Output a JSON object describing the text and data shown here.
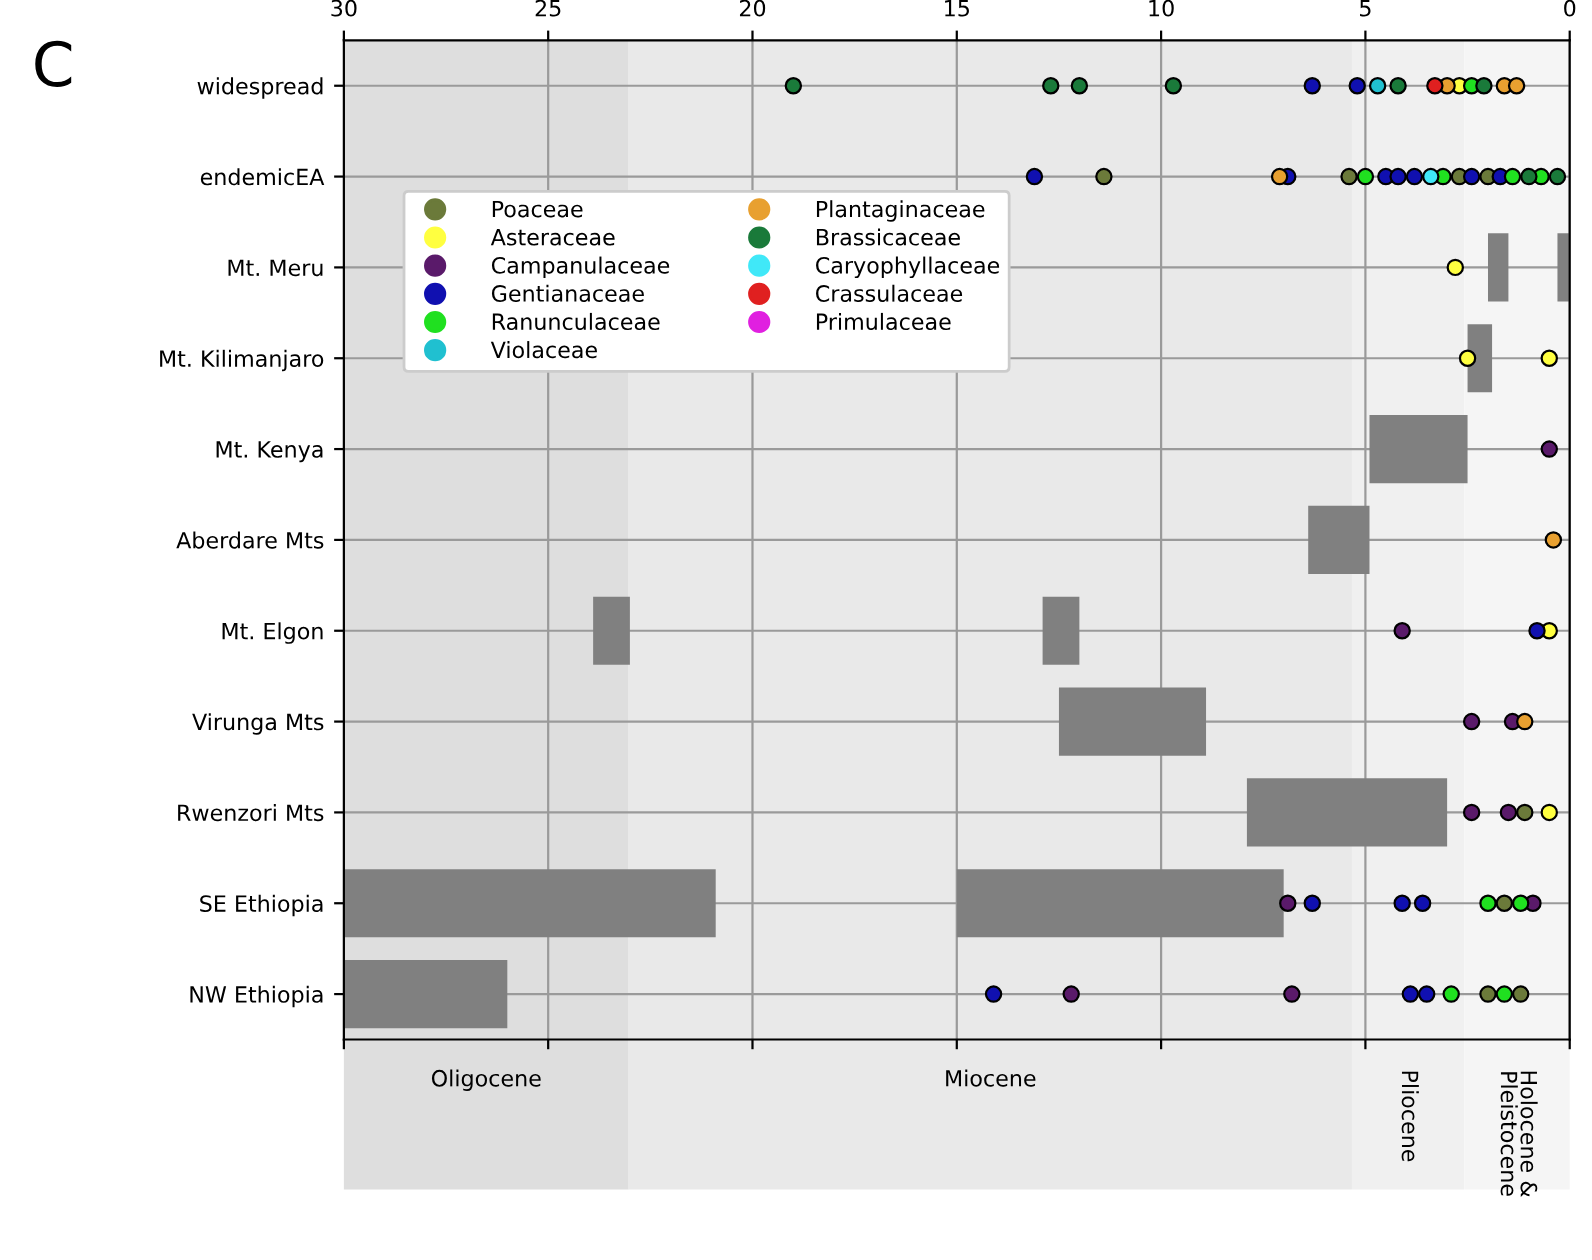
{
  "chart_data": {
    "type": "bar",
    "orientation": "horizontal",
    "annotations": [
      "C"
    ],
    "categories": [
      "widespread",
      "endemicEA",
      "Mt. Meru",
      "Mt. Kilimanjaro",
      "Mt. Kenya",
      "Aberdare Mts",
      "Mt. Elgon",
      "Virunga Mts",
      "Rwenzori Mts",
      "SE Ethiopia",
      "NW Ethiopia"
    ],
    "xlim": [
      30,
      0
    ],
    "xticks": [
      30,
      25,
      20,
      15,
      10,
      5,
      0
    ],
    "grid": true,
    "legend": "top left",
    "marker": "circle",
    "bands": [
      {
        "axis": "x",
        "from": 30,
        "to": 23.03,
        "label": "Oligocene",
        "color": "#dedede"
      },
      {
        "axis": "x",
        "from": 23.03,
        "to": 5.33,
        "label": "Miocene",
        "color": "#e9e9e9"
      },
      {
        "axis": "x",
        "from": 5.33,
        "to": 2.58,
        "label": "Pliocene",
        "color": "#f0f0f0"
      },
      {
        "axis": "x",
        "from": 2.58,
        "to": 0,
        "label": "Holocene &\nPleistocene",
        "color": "#f5f5f5"
      }
    ],
    "series": [
      {
        "color": "#808080",
        "base": [
          null,
          null,
          1.5,
          1.9,
          2.5,
          4.9,
          23.0,
          8.9,
          3.0,
          20.9,
          26.0
        ],
        "values": [
          null,
          null,
          0.5,
          0.6,
          2.4,
          1.5,
          0.9,
          3.6,
          4.9,
          9.1,
          4.0
        ]
      },
      {
        "color": "#808080",
        "base": [
          null,
          null,
          0,
          null,
          null,
          null,
          12.0,
          null,
          null,
          7.0,
          null
        ],
        "values": [
          null,
          null,
          0.3,
          null,
          null,
          null,
          0.9,
          null,
          null,
          8.0,
          null
        ]
      },
      {
        "type": "scatter",
        "name": "Poaceae",
        "color": "#6b7a3a",
        "values": [
          null,
          11.4,
          null,
          null,
          null,
          null,
          null,
          null,
          1.1,
          1.6,
          2.0
        ]
      },
      {
        "type": "scatter",
        "color": "#6b7a3a",
        "values": [
          null,
          5.4,
          null,
          null,
          null,
          null,
          null,
          null,
          null,
          null,
          1.2
        ]
      },
      {
        "type": "scatter",
        "color": "#6b7a3a",
        "values": [
          null,
          2.7,
          null,
          null,
          null,
          null,
          null,
          null,
          null,
          null,
          null
        ]
      },
      {
        "type": "scatter",
        "color": "#6b7a3a",
        "values": [
          null,
          2.0,
          null,
          null,
          null,
          null,
          null,
          null,
          null,
          null,
          null
        ]
      },
      {
        "type": "scatter",
        "name": "Asteraceae",
        "color": "#ffff40",
        "values": [
          2.7,
          null,
          2.8,
          2.5,
          null,
          null,
          0.5,
          null,
          0.5,
          null,
          null
        ]
      },
      {
        "type": "scatter",
        "color": "#ffff40",
        "values": [
          null,
          null,
          null,
          0.5,
          null,
          null,
          null,
          null,
          null,
          null,
          null
        ]
      },
      {
        "type": "scatter",
        "name": "Campanulaceae",
        "color": "#5a1a6a",
        "values": [
          null,
          null,
          null,
          null,
          0.5,
          null,
          4.1,
          2.4,
          2.4,
          6.9,
          12.2
        ]
      },
      {
        "type": "scatter",
        "color": "#5a1a6a",
        "values": [
          null,
          null,
          null,
          null,
          null,
          null,
          null,
          1.4,
          1.5,
          0.9,
          6.8
        ]
      },
      {
        "type": "scatter",
        "name": "Gentianaceae",
        "color": "#1010b0",
        "values": [
          6.3,
          13.1,
          null,
          null,
          null,
          null,
          0.8,
          null,
          null,
          6.3,
          14.1
        ]
      },
      {
        "type": "scatter",
        "color": "#1010b0",
        "values": [
          5.2,
          6.9,
          null,
          null,
          null,
          null,
          null,
          null,
          null,
          4.1,
          3.9
        ]
      },
      {
        "type": "scatter",
        "color": "#1010b0",
        "values": [
          null,
          4.5,
          null,
          null,
          null,
          null,
          null,
          null,
          null,
          3.6,
          3.5
        ]
      },
      {
        "type": "scatter",
        "color": "#1010b0",
        "values": [
          null,
          4.2,
          null,
          null,
          null,
          null,
          null,
          null,
          null,
          null,
          null
        ]
      },
      {
        "type": "scatter",
        "color": "#1010b0",
        "values": [
          null,
          3.8,
          null,
          null,
          null,
          null,
          null,
          null,
          null,
          null,
          null
        ]
      },
      {
        "type": "scatter",
        "color": "#1010b0",
        "values": [
          null,
          2.4,
          null,
          null,
          null,
          null,
          null,
          null,
          null,
          null,
          null
        ]
      },
      {
        "type": "scatter",
        "color": "#1010b0",
        "values": [
          null,
          1.7,
          null,
          null,
          null,
          null,
          null,
          null,
          null,
          null,
          null
        ]
      },
      {
        "type": "scatter",
        "name": "Ranunculaceae",
        "color": "#20e020",
        "values": [
          2.4,
          5.0,
          null,
          null,
          null,
          null,
          null,
          null,
          null,
          2.0,
          2.9
        ]
      },
      {
        "type": "scatter",
        "color": "#20e020",
        "values": [
          null,
          3.1,
          null,
          null,
          null,
          null,
          null,
          null,
          null,
          1.2,
          1.6
        ]
      },
      {
        "type": "scatter",
        "color": "#20e020",
        "values": [
          null,
          1.4,
          null,
          null,
          null,
          null,
          null,
          null,
          null,
          null,
          null
        ]
      },
      {
        "type": "scatter",
        "color": "#20e020",
        "values": [
          null,
          0.7,
          null,
          null,
          null,
          null,
          null,
          null,
          null,
          null,
          null
        ]
      },
      {
        "type": "scatter",
        "name": "Violaceae",
        "color": "#20c0d0",
        "values": [
          4.7,
          null,
          null,
          null,
          null,
          null,
          null,
          null,
          null,
          null,
          null
        ]
      },
      {
        "type": "scatter",
        "name": "Plantaginaceae",
        "color": "#e8a030",
        "values": [
          3.0,
          7.1,
          null,
          null,
          null,
          0.4,
          null,
          1.1,
          null,
          null,
          null
        ]
      },
      {
        "type": "scatter",
        "color": "#e8a030",
        "values": [
          1.6,
          null,
          null,
          null,
          null,
          null,
          null,
          null,
          null,
          null,
          null
        ]
      },
      {
        "type": "scatter",
        "color": "#e8a030",
        "values": [
          1.3,
          null,
          null,
          null,
          null,
          null,
          null,
          null,
          null,
          null,
          null
        ]
      },
      {
        "type": "scatter",
        "name": "Brassicaceae",
        "color": "#1a7a3a",
        "values": [
          19.0,
          1.0,
          null,
          null,
          null,
          null,
          null,
          null,
          null,
          null,
          null
        ]
      },
      {
        "type": "scatter",
        "color": "#1a7a3a",
        "values": [
          12.7,
          0.3,
          null,
          null,
          null,
          null,
          null,
          null,
          null,
          null,
          null
        ]
      },
      {
        "type": "scatter",
        "color": "#1a7a3a",
        "values": [
          12.0,
          null,
          null,
          null,
          null,
          null,
          null,
          null,
          null,
          null,
          null
        ]
      },
      {
        "type": "scatter",
        "color": "#1a7a3a",
        "values": [
          9.7,
          null,
          null,
          null,
          null,
          null,
          null,
          null,
          null,
          null,
          null
        ]
      },
      {
        "type": "scatter",
        "color": "#1a7a3a",
        "values": [
          4.2,
          null,
          null,
          null,
          null,
          null,
          null,
          null,
          null,
          null,
          null
        ]
      },
      {
        "type": "scatter",
        "color": "#1a7a3a",
        "values": [
          2.1,
          null,
          null,
          null,
          null,
          null,
          null,
          null,
          null,
          null,
          null
        ]
      },
      {
        "type": "scatter",
        "name": "Caryophyllaceae",
        "color": "#40e8f8",
        "values": [
          null,
          3.4,
          null,
          null,
          null,
          null,
          null,
          null,
          null,
          null,
          null
        ]
      },
      {
        "type": "scatter",
        "name": "Crassulaceae",
        "color": "#e02020",
        "values": [
          3.3,
          null,
          null,
          null,
          null,
          null,
          null,
          null,
          null,
          null,
          null
        ]
      },
      {
        "type": "scatter",
        "name": "Primulaceae",
        "color": "#e020e0",
        "values": [
          null,
          null,
          null,
          null,
          null,
          null,
          null,
          null,
          null,
          null,
          null
        ]
      }
    ]
  }
}
